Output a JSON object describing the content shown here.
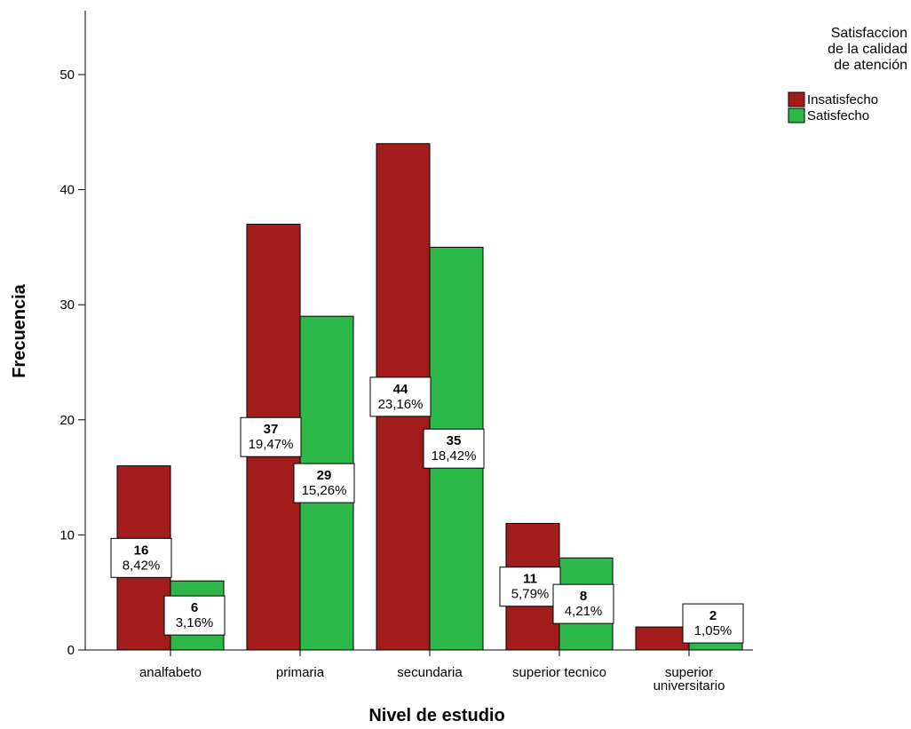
{
  "chart_data": {
    "type": "bar",
    "ylabel": "Frecuencia",
    "xlabel": "Nivel de estudio",
    "ylim": [
      0,
      55
    ],
    "yticks": [
      0,
      10,
      20,
      30,
      40,
      50
    ],
    "categories": [
      [
        "analfabeto"
      ],
      [
        "primaria"
      ],
      [
        "secundaria"
      ],
      [
        "superior tecnico"
      ],
      [
        "superior",
        "universitario"
      ]
    ],
    "legend": {
      "title_lines": [
        "Satisfaccion",
        "de la calidad",
        "de atención"
      ],
      "placement": "top-right"
    },
    "series": [
      {
        "name": "Insatisfecho",
        "color": "#a31c1c",
        "values": [
          16,
          37,
          44,
          11,
          2
        ],
        "percent_labels": [
          "8,42%",
          "19,47%",
          "23,16%",
          "5,79%",
          null
        ]
      },
      {
        "name": "Satisfecho",
        "color": "#2db84a",
        "values": [
          6,
          29,
          35,
          8,
          2
        ],
        "percent_labels": [
          "3,16%",
          "15,26%",
          "18,42%",
          "4,21%",
          "1,05%"
        ]
      }
    ]
  }
}
